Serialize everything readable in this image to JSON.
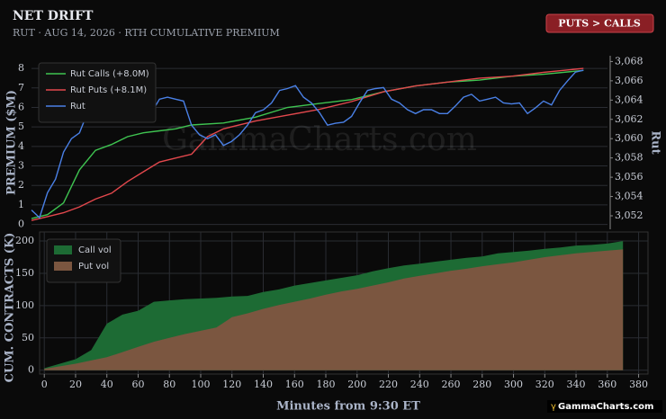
{
  "badge": "PUTS > CALLS",
  "watermark": "GammaCharts.com",
  "footer": "GammaCharts.com",
  "chart_data": [
    {
      "type": "line",
      "title": "NET DRIFT",
      "subtitle": "RUT · AUG 14, 2026 · RTH CUMULATIVE PREMIUM",
      "ylabel": "PREMIUM ($M)",
      "y2label": "Rut",
      "xlim": [
        0,
        360
      ],
      "ylim": [
        -0.25,
        8.65
      ],
      "yticks": [
        0,
        1,
        2,
        3,
        4,
        5,
        6,
        7,
        8
      ],
      "y2lim": [
        3050.6,
        3068.6
      ],
      "y2ticks": [
        {
          "value": 3052,
          "label": "3,052"
        },
        {
          "value": 3054,
          "label": "3,054"
        },
        {
          "value": 3056,
          "label": "3,056"
        },
        {
          "value": 3058,
          "label": "3,058"
        },
        {
          "value": 3060,
          "label": "3,060"
        },
        {
          "value": 3062,
          "label": "3,062"
        },
        {
          "value": 3064,
          "label": "3,064"
        },
        {
          "value": 3066,
          "label": "3,066"
        },
        {
          "value": 3068,
          "label": "3,068"
        }
      ],
      "grid": true,
      "legend": "upper left",
      "series": [
        {
          "name": "Rut Calls (+8.0M)",
          "color": "#3fc451",
          "x": [
            0,
            10,
            20,
            30,
            40,
            50,
            60,
            70,
            80,
            90,
            100,
            120,
            140,
            160,
            180,
            200,
            220,
            240,
            260,
            280,
            300,
            320,
            345
          ],
          "values": [
            0.3,
            0.5,
            1.1,
            2.8,
            3.8,
            4.1,
            4.5,
            4.7,
            4.8,
            4.9,
            5.1,
            5.2,
            5.5,
            6.0,
            6.2,
            6.4,
            6.8,
            7.1,
            7.3,
            7.4,
            7.6,
            7.7,
            7.9
          ]
        },
        {
          "name": "Rut Puts (+8.1M)",
          "color": "#e3484d",
          "x": [
            0,
            10,
            20,
            30,
            40,
            50,
            60,
            70,
            80,
            90,
            100,
            110,
            120,
            140,
            160,
            180,
            200,
            220,
            240,
            260,
            280,
            300,
            320,
            345
          ],
          "values": [
            0.2,
            0.4,
            0.6,
            0.9,
            1.3,
            1.6,
            2.2,
            2.7,
            3.2,
            3.4,
            3.6,
            4.5,
            4.9,
            5.3,
            5.6,
            5.9,
            6.3,
            6.8,
            7.1,
            7.3,
            7.5,
            7.6,
            7.8,
            8.0
          ]
        },
        {
          "name": "Rut",
          "color": "#4a80e6",
          "axis": "y2",
          "x": [
            0,
            5,
            10,
            15,
            20,
            25,
            30,
            35,
            40,
            45,
            50,
            55,
            60,
            65,
            70,
            75,
            80,
            85,
            90,
            95,
            100,
            105,
            110,
            115,
            120,
            125,
            130,
            135,
            140,
            145,
            150,
            155,
            160,
            165,
            170,
            175,
            180,
            185,
            190,
            195,
            200,
            205,
            210,
            215,
            220,
            225,
            230,
            235,
            240,
            245,
            250,
            255,
            260,
            265,
            270,
            275,
            280,
            285,
            290,
            295,
            300,
            305,
            310,
            315,
            320,
            325,
            330,
            335,
            340,
            345
          ],
          "values": [
            3052.6,
            3051.8,
            3054.4,
            3055.8,
            3058.6,
            3060,
            3060.6,
            3062.7,
            3064.6,
            3063.7,
            3065,
            3064.8,
            3063.9,
            3064.3,
            3061.8,
            3062.7,
            3064.1,
            3064.3,
            3064.1,
            3063.9,
            3061.4,
            3060.4,
            3060,
            3060.4,
            3059.3,
            3059.7,
            3060.4,
            3061.4,
            3062.7,
            3063,
            3063.7,
            3065,
            3065.2,
            3065.5,
            3064.3,
            3063.7,
            3062.7,
            3061.4,
            3061.6,
            3061.7,
            3062.3,
            3063.7,
            3065,
            3065.2,
            3065.3,
            3064.1,
            3063.7,
            3063,
            3062.6,
            3063,
            3063,
            3062.6,
            3062.6,
            3063.4,
            3064.3,
            3064.6,
            3063.9,
            3064.1,
            3064.3,
            3063.7,
            3063.6,
            3063.7,
            3062.6,
            3063.2,
            3063.9,
            3063.5,
            3065,
            3066,
            3066.9,
            3067.1
          ]
        }
      ]
    },
    {
      "type": "area",
      "xlabel": "Minutes from 9:30 ET",
      "ylabel": "CUM. CONTRACTS (K)",
      "xlim": [
        -3,
        386
      ],
      "xticks": [
        0,
        20,
        40,
        60,
        80,
        100,
        120,
        140,
        160,
        180,
        200,
        220,
        240,
        260,
        280,
        300,
        320,
        340,
        360,
        380
      ],
      "ylim": [
        -6,
        214
      ],
      "yticks": [
        0,
        50,
        100,
        150,
        200
      ],
      "grid": true,
      "legend": "upper left",
      "x": [
        0,
        10,
        20,
        30,
        40,
        50,
        60,
        70,
        80,
        90,
        100,
        110,
        120,
        130,
        140,
        150,
        160,
        170,
        180,
        190,
        200,
        210,
        220,
        230,
        240,
        250,
        260,
        270,
        280,
        290,
        300,
        310,
        320,
        330,
        340,
        350,
        360,
        370
      ],
      "series": [
        {
          "name": "Call vol",
          "color": "#1d6b34",
          "values": [
            3,
            10,
            17,
            31,
            72,
            86,
            92,
            106,
            108,
            110,
            111,
            112,
            114,
            115,
            121,
            125,
            131,
            135,
            139,
            143,
            147,
            153,
            158,
            162,
            165,
            168,
            171,
            174,
            176,
            181,
            183,
            185,
            188,
            190,
            193,
            194,
            196,
            200
          ]
        },
        {
          "name": "Put vol",
          "color": "#7b5640",
          "values": [
            2,
            6,
            10,
            15,
            20,
            28,
            36,
            44,
            50,
            56,
            61,
            66,
            82,
            88,
            95,
            101,
            106,
            111,
            117,
            122,
            126,
            131,
            136,
            142,
            146,
            150,
            154,
            157,
            161,
            164,
            167,
            171,
            175,
            178,
            181,
            183,
            185,
            187
          ]
        }
      ]
    }
  ]
}
